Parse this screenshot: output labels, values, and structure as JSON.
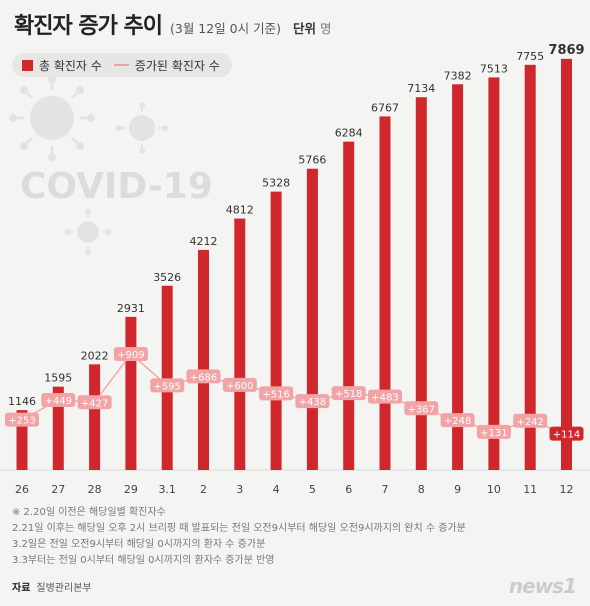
{
  "title": "확진자 증가 추이",
  "subtitle": "(3월 12일 0시 기준)",
  "unit_label": "단위",
  "unit_value": "명",
  "legend": {
    "bar": "총 확진자 수",
    "line": "증가된 확진자 수"
  },
  "watermark": "COVID-19",
  "notes": [
    "※ 2.20일 이전은 해당일별 확진자수",
    "2.21일 이후는 해당일 오후 2시 브리핑 때 발표되는 전일 오전9시부터 해당일 오전9시까지의 완치 수 증가분",
    "3.2일은 전일 오전9시부터 해당일 0시까지의 환자 수 증가분",
    "3.3부터는 전일 0시부터 해당일 0시까지의 환자수 증가분 반영"
  ],
  "source_label": "자료",
  "source_value": "질병관리본부",
  "logo": "news1",
  "colors": {
    "bar": "#d0272c",
    "line": "#f0a0a4",
    "badge": "#f2a3a5",
    "label": "#333333"
  },
  "chart_data": {
    "type": "bar",
    "categories": [
      "26",
      "27",
      "28",
      "29",
      "3.1",
      "2",
      "3",
      "4",
      "5",
      "6",
      "7",
      "8",
      "9",
      "10",
      "11",
      "12"
    ],
    "series": [
      {
        "name": "총 확진자 수",
        "type": "bar",
        "values": [
          1146,
          1595,
          2022,
          2931,
          3526,
          4212,
          4812,
          5328,
          5766,
          6284,
          6767,
          7134,
          7382,
          7513,
          7755,
          7869
        ]
      },
      {
        "name": "증가된 확진자 수",
        "type": "line",
        "values": [
          253,
          449,
          427,
          909,
          595,
          686,
          600,
          516,
          438,
          518,
          483,
          367,
          248,
          131,
          242,
          114
        ],
        "labels": [
          "+253",
          "+449",
          "+427",
          "+909",
          "+595",
          "+686",
          "+600",
          "+516",
          "+438",
          "+518",
          "+483",
          "+367",
          "+248",
          "+131",
          "+242",
          "+114"
        ]
      }
    ],
    "ylim": [
      0,
      8000
    ],
    "legend": "top-left",
    "grid": false
  }
}
